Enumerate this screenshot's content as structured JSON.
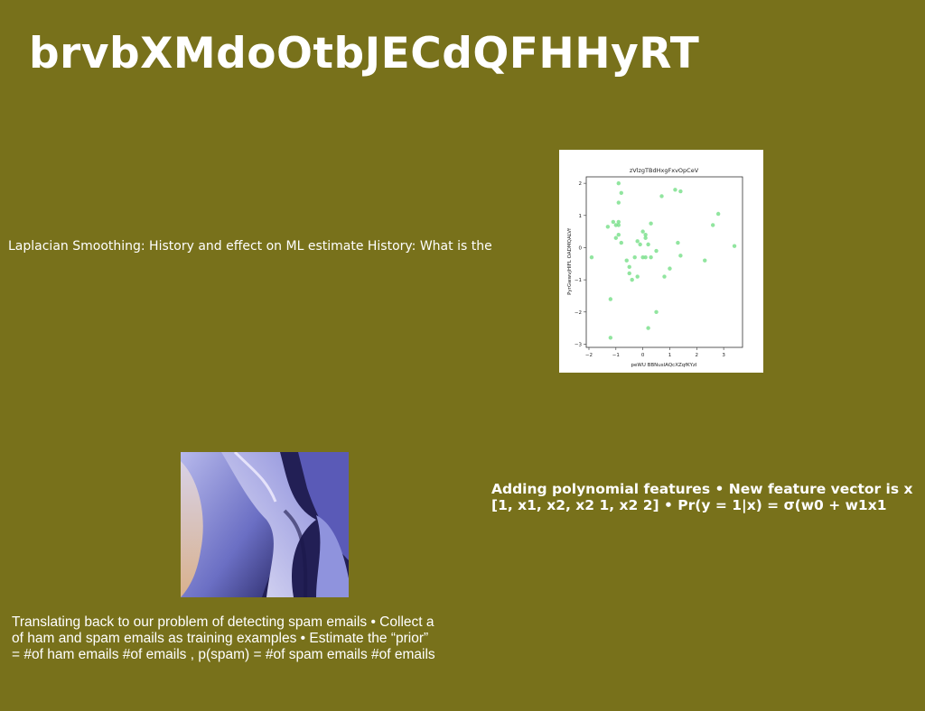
{
  "slide": {
    "title": "brvbXMdoOtbJECdQFHHyRT",
    "text_a": "Laplacian Smoothing: History and effect on ML estimate History: What is the",
    "text_b": [
      "Adding polynomial features • New feature vector is x",
      "[1, x1, x2, x2 1, x2 2] • Pr(y = 1|x) = σ(w0 + w1x1"
    ],
    "text_c": [
      "Translating back to our problem of detecting spam emails • Collect a",
      "of ham and spam emails as training examples • Estimate the “prior”",
      "= #of ham emails #of emails , p(spam) = #of spam emails #of emails"
    ]
  },
  "colors": {
    "background": "#78711b",
    "points": "#7ee08e"
  },
  "chart_data": {
    "type": "scatter",
    "title": "zVlzgTBdHxgFxvOpCeV",
    "xlabel": "peWU BBNuslAQcXZqfKYzI",
    "ylabel": "PyrGwwvjHIFL OADMQALVf",
    "xlim": [
      -2.1,
      3.7
    ],
    "ylim": [
      -3.1,
      2.2
    ],
    "xticks": [
      -2,
      -1,
      0,
      1,
      2,
      3
    ],
    "yticks": [
      -3,
      -2,
      -1,
      0,
      1,
      2
    ],
    "grid": false,
    "points": [
      [
        -0.9,
        2.0
      ],
      [
        -0.8,
        1.7
      ],
      [
        -0.9,
        1.4
      ],
      [
        -0.9,
        0.8
      ],
      [
        -1.1,
        0.8
      ],
      [
        -0.9,
        0.7
      ],
      [
        -1.0,
        0.7
      ],
      [
        -1.3,
        0.65
      ],
      [
        -0.9,
        0.4
      ],
      [
        -1.0,
        0.3
      ],
      [
        -0.8,
        0.15
      ],
      [
        -0.6,
        -0.4
      ],
      [
        -0.5,
        -0.6
      ],
      [
        -0.5,
        -0.8
      ],
      [
        -0.4,
        -1.0
      ],
      [
        -0.2,
        -0.9
      ],
      [
        -1.9,
        -0.3
      ],
      [
        -1.2,
        -1.6
      ],
      [
        -1.2,
        -2.8
      ],
      [
        -0.3,
        -0.3
      ],
      [
        -0.2,
        0.2
      ],
      [
        -0.1,
        0.1
      ],
      [
        0.0,
        0.5
      ],
      [
        0.1,
        0.3
      ],
      [
        0.1,
        0.4
      ],
      [
        0.2,
        0.1
      ],
      [
        0.3,
        0.75
      ],
      [
        0.0,
        -0.3
      ],
      [
        0.1,
        -0.3
      ],
      [
        0.3,
        -0.3
      ],
      [
        0.5,
        -0.1
      ],
      [
        0.5,
        -2.0
      ],
      [
        0.2,
        -2.5
      ],
      [
        0.7,
        1.6
      ],
      [
        0.8,
        -0.9
      ],
      [
        1.0,
        -0.65
      ],
      [
        1.2,
        1.8
      ],
      [
        1.4,
        1.75
      ],
      [
        1.3,
        0.15
      ],
      [
        1.4,
        -0.25
      ],
      [
        2.3,
        -0.4
      ],
      [
        2.6,
        0.7
      ],
      [
        2.8,
        1.05
      ],
      [
        3.4,
        0.05
      ]
    ]
  }
}
